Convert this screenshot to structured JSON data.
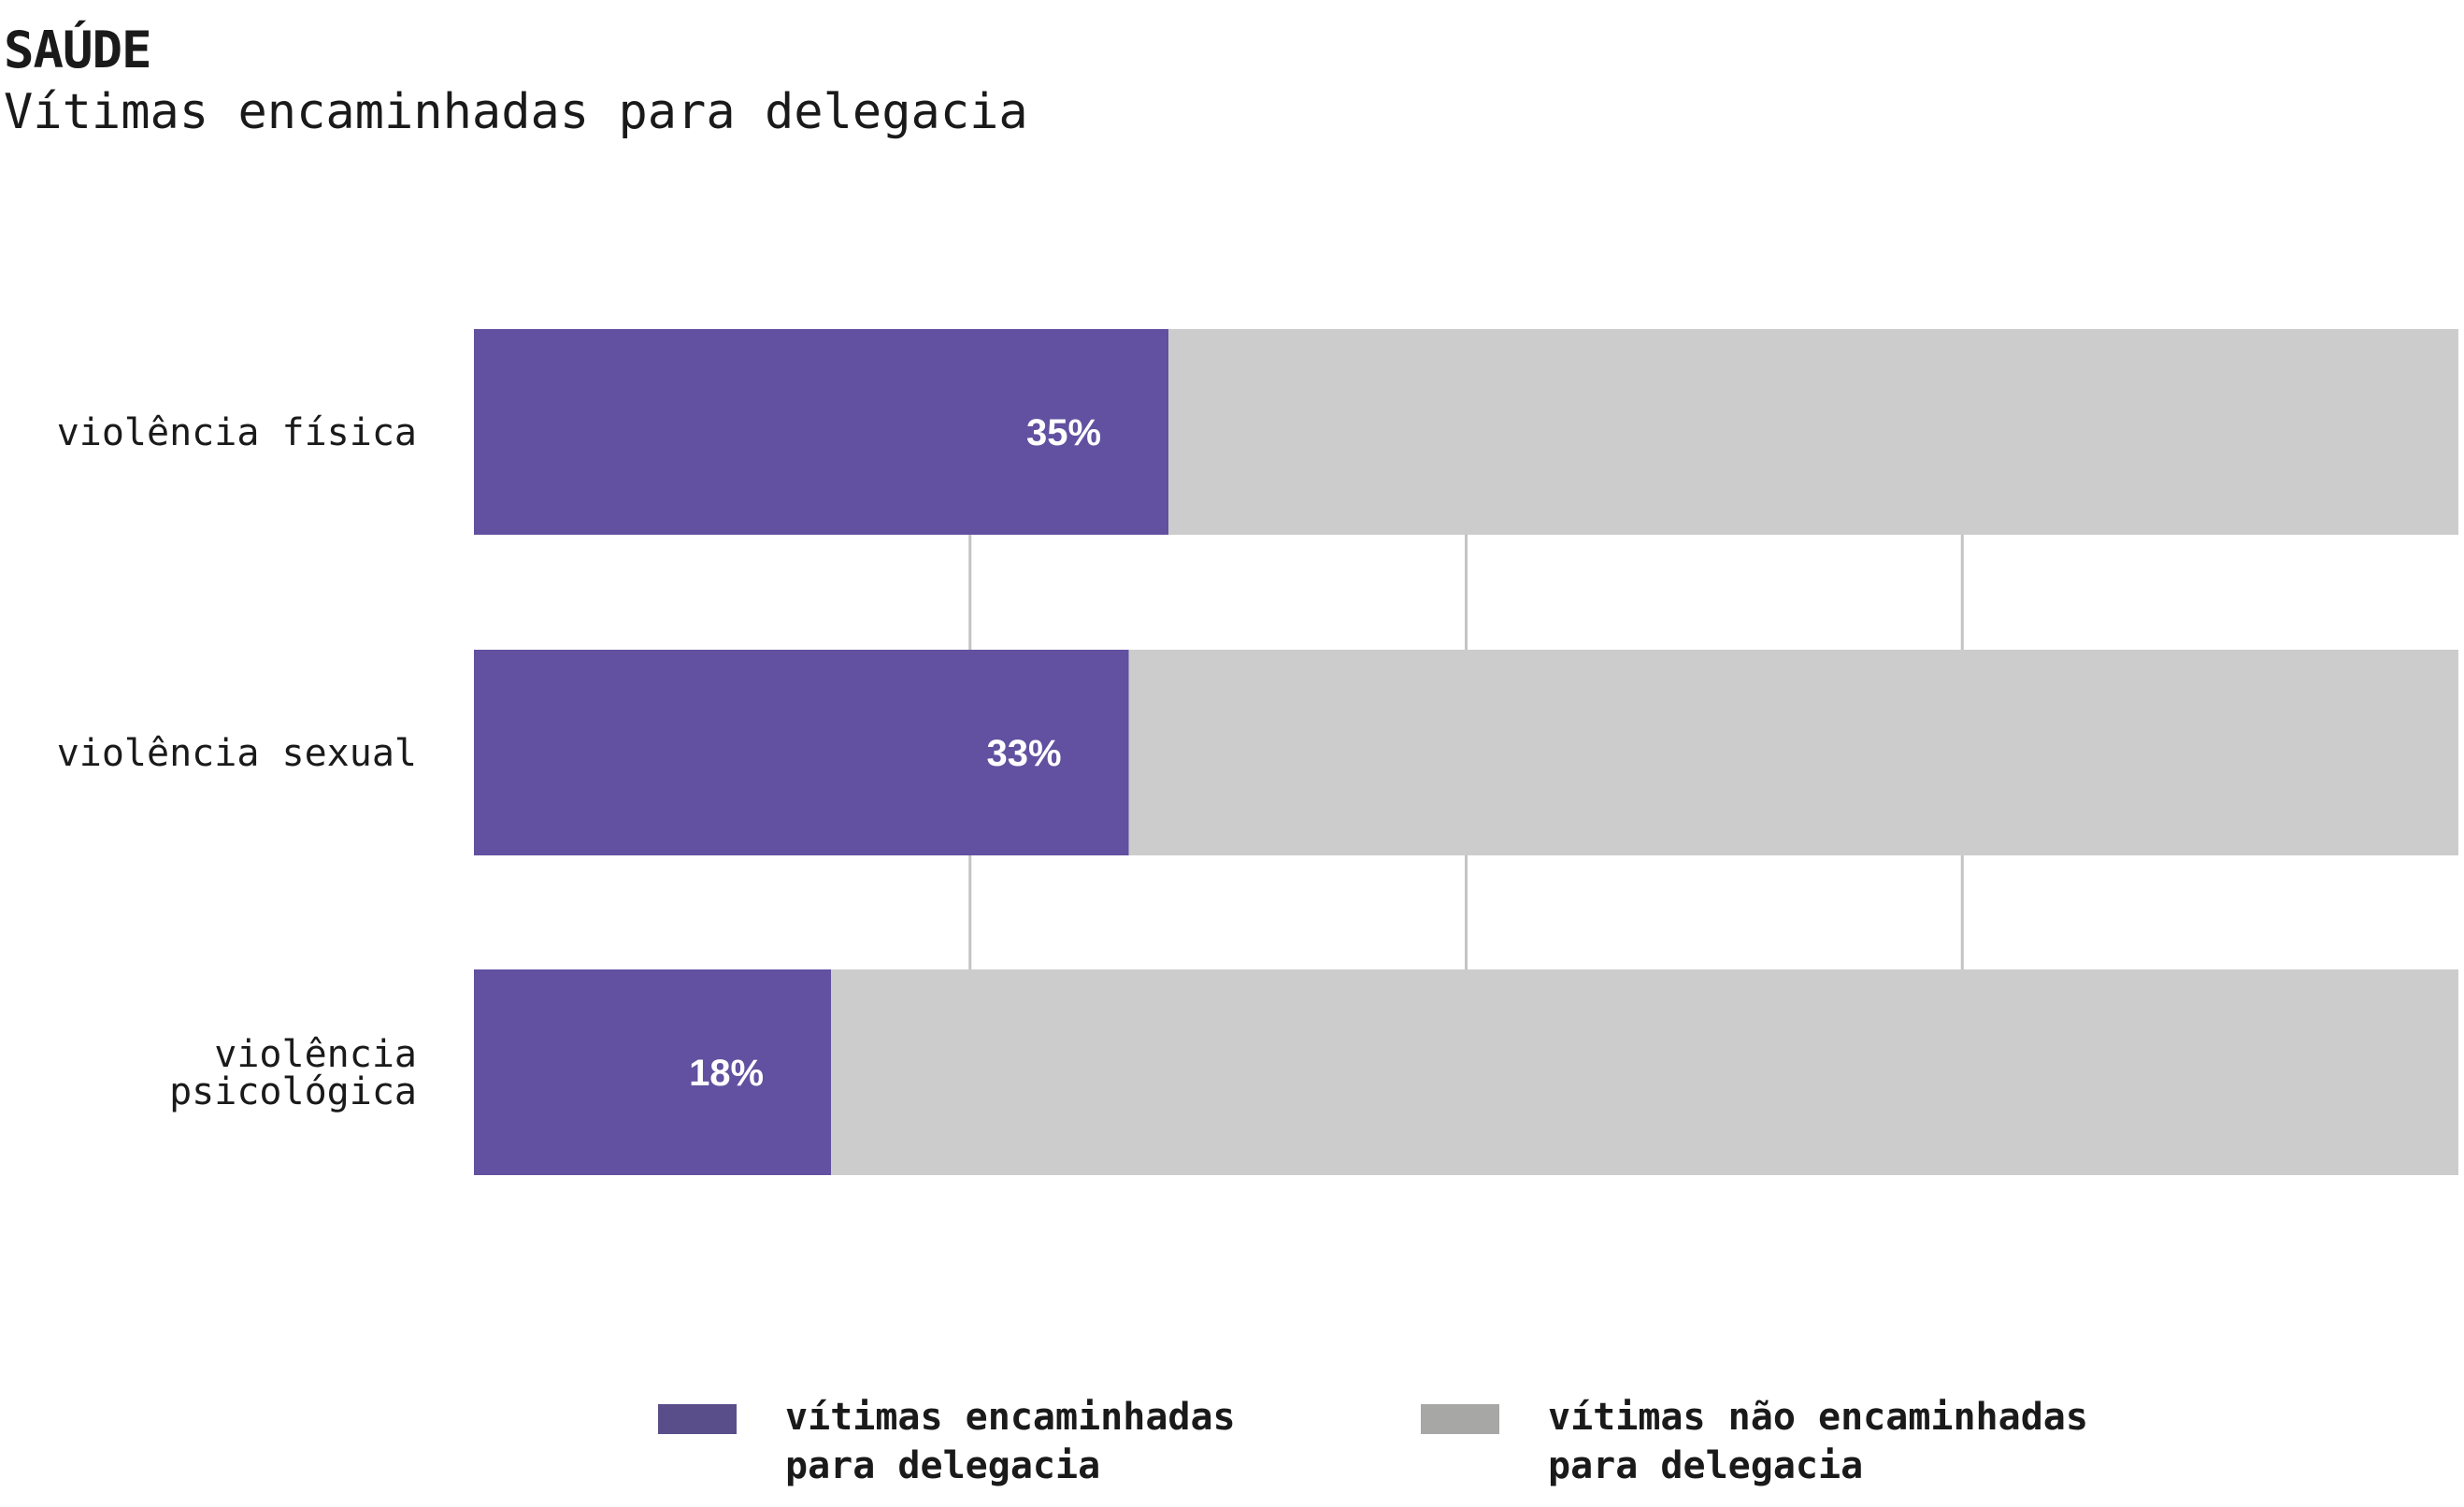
{
  "header": {
    "kicker": "SAÚDE",
    "title": "Vítimas encaminhadas para delegacia"
  },
  "colors": {
    "encaminhadas": "#6250a0",
    "nao_encaminhadas": "#cccccc",
    "legend_encaminhadas": "#5a4e8a",
    "legend_nao_encaminhadas": "#a7a8a6",
    "grid": "#c4c4c4"
  },
  "chart_data": {
    "type": "bar",
    "orientation": "horizontal",
    "stacked": true,
    "categories": [
      "violência física",
      "violência sexual",
      "violência psicológica"
    ],
    "category_lines": [
      [
        "violência física"
      ],
      [
        "violência sexual"
      ],
      [
        "violência",
        "psicológica"
      ]
    ],
    "series": [
      {
        "name": "vítimas encaminhadas para delegacia",
        "values": [
          35,
          33,
          18
        ],
        "labels": [
          "35%",
          "33%",
          "18%"
        ]
      },
      {
        "name": "vítimas não encaminhadas para delegacia",
        "values": [
          65,
          67,
          82
        ]
      }
    ],
    "xlim": [
      0,
      100
    ],
    "gridlines_x": [
      25,
      50,
      75
    ],
    "legend": "bottom"
  },
  "legend": {
    "items": [
      {
        "label": "vítimas encaminhadas\npara delegacia"
      },
      {
        "label": "vítimas não encaminhadas\npara delegacia"
      }
    ]
  }
}
